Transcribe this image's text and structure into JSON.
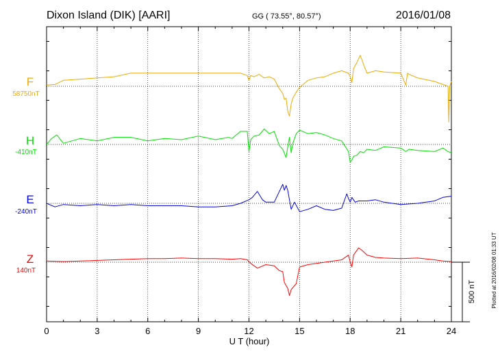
{
  "header": {
    "station": "Dixon Island (DIK)  [AARI]",
    "coords": "GG ( 73.55°,  80.57°)",
    "date": "2016/01/08"
  },
  "side_note": "Plotted at 2016/02/08 01:33 UT",
  "chart_data": {
    "type": "line",
    "title": "Dixon Island (DIK)  [AARI]",
    "xlabel": "U T (hour)",
    "xlim": [
      0,
      24
    ],
    "xticks": [
      "0",
      "3",
      "6",
      "9",
      "12",
      "15",
      "18",
      "21",
      "24"
    ],
    "grid": true,
    "scale_bar": {
      "label": "500 nT",
      "value": 500
    },
    "series": [
      {
        "name": "F",
        "baseline_label": "58750nT",
        "baseline": 58750,
        "color": "#f0a800",
        "x": [
          0,
          0.5,
          1,
          2,
          3,
          4,
          5,
          6,
          7,
          8,
          9,
          10,
          11,
          11.5,
          11.9,
          12.0,
          12.1,
          12.3,
          12.6,
          12.9,
          13.2,
          13.5,
          13.8,
          14.0,
          14.1,
          14.2,
          14.3,
          14.4,
          14.5,
          14.6,
          14.8,
          15.0,
          15.5,
          16.0,
          16.5,
          17.0,
          17.5,
          17.9,
          18.0,
          18.1,
          18.2,
          18.4,
          18.6,
          18.8,
          19.0,
          19.5,
          20.0,
          21.0,
          21.3,
          21.4,
          21.5,
          22.0,
          23.0,
          23.8,
          23.85,
          23.9,
          23.95,
          24.0
        ],
        "values": [
          58760,
          58765,
          58800,
          58810,
          58820,
          58830,
          58860,
          58860,
          58860,
          58860,
          58860,
          58860,
          58860,
          58860,
          58840,
          58800,
          58840,
          58830,
          58850,
          58820,
          58830,
          58810,
          58730,
          58690,
          58640,
          58650,
          58540,
          58500,
          58600,
          58650,
          58700,
          58740,
          58800,
          58820,
          58830,
          58860,
          58880,
          58860,
          58830,
          58780,
          58900,
          58950,
          59010,
          58930,
          58860,
          58880,
          58870,
          58860,
          58760,
          58860,
          58850,
          58820,
          58790,
          58750,
          58450,
          58750,
          58770,
          58790
        ]
      },
      {
        "name": "H",
        "baseline_label": "-410nT",
        "baseline": -410,
        "color": "#00e000",
        "x": [
          0,
          0.3,
          0.6,
          1,
          2,
          3,
          4,
          5,
          6,
          7,
          8,
          9,
          10,
          10.8,
          11,
          11.5,
          11.9,
          12.0,
          12.1,
          12.3,
          12.6,
          12.9,
          13.2,
          13.5,
          13.8,
          14.0,
          14.2,
          14.3,
          14.4,
          14.5,
          14.6,
          14.8,
          15.0,
          15.5,
          16.0,
          16.5,
          17.0,
          17.5,
          17.9,
          18.0,
          18.1,
          18.2,
          18.4,
          18.6,
          18.8,
          19.0,
          19.5,
          20.0,
          21.0,
          21.3,
          21.5,
          22.0,
          23.0,
          23.5,
          23.8,
          24.0
        ],
        "values": [
          -410,
          -360,
          -330,
          -400,
          -360,
          -380,
          -350,
          -350,
          -380,
          -360,
          -370,
          -340,
          -370,
          -350,
          -360,
          -300,
          -300,
          -470,
          -370,
          -340,
          -330,
          -280,
          -320,
          -300,
          -420,
          -450,
          -520,
          -430,
          -350,
          -480,
          -400,
          -320,
          -290,
          -320,
          -310,
          -330,
          -360,
          -380,
          -470,
          -560,
          -540,
          -510,
          -500,
          -470,
          -480,
          -450,
          -460,
          -430,
          -440,
          -470,
          -450,
          -460,
          -470,
          -440,
          -470,
          -480
        ]
      },
      {
        "name": "E",
        "baseline_label": "-240nT",
        "baseline": -240,
        "color": "#0000e0",
        "x": [
          0,
          0.5,
          1,
          2,
          3,
          4,
          5,
          6,
          7,
          8,
          9,
          10,
          11,
          11.5,
          12.0,
          12.2,
          12.5,
          12.8,
          13.0,
          13.5,
          14.0,
          14.1,
          14.2,
          14.3,
          14.5,
          14.7,
          15.0,
          15.5,
          16.0,
          16.5,
          17.0,
          17.5,
          17.8,
          17.9,
          18.0,
          18.1,
          18.3,
          18.5,
          19.0,
          19.5,
          20.0,
          21.0,
          22.0,
          23.0,
          23.5,
          24.0
        ],
        "values": [
          -240,
          -270,
          -250,
          -260,
          -250,
          -260,
          -250,
          -260,
          -260,
          -260,
          -270,
          -270,
          -260,
          -240,
          -210,
          -190,
          -140,
          -210,
          -230,
          -230,
          -80,
          -130,
          -90,
          -130,
          -290,
          -230,
          -310,
          -290,
          -260,
          -290,
          -300,
          -280,
          -160,
          -200,
          -230,
          -190,
          -230,
          -220,
          -220,
          -210,
          -230,
          -250,
          -240,
          -220,
          -190,
          -180
        ]
      },
      {
        "name": "Z",
        "baseline_label": "140nT",
        "baseline": 140,
        "color": "#ff0000",
        "x": [
          0,
          1,
          2,
          3,
          4,
          5,
          6,
          7,
          8,
          9,
          10,
          11,
          11.5,
          11.9,
          12.1,
          12.5,
          13.0,
          13.5,
          13.8,
          14.0,
          14.1,
          14.3,
          14.4,
          14.5,
          14.8,
          15.0,
          15.5,
          16.0,
          16.5,
          17.0,
          17.5,
          17.8,
          17.9,
          18.0,
          18.1,
          18.2,
          18.5,
          18.7,
          19.0,
          19.5,
          20.0,
          21.0,
          22.0,
          23.0,
          23.5,
          24.0
        ],
        "values": [
          150,
          145,
          150,
          155,
          160,
          165,
          170,
          170,
          175,
          170,
          170,
          165,
          170,
          160,
          130,
          90,
          120,
          110,
          70,
          60,
          -30,
          -80,
          -140,
          -90,
          -40,
          100,
          120,
          130,
          140,
          150,
          160,
          190,
          200,
          140,
          100,
          200,
          260,
          240,
          200,
          180,
          175,
          170,
          175,
          160,
          150,
          145
        ]
      }
    ]
  }
}
